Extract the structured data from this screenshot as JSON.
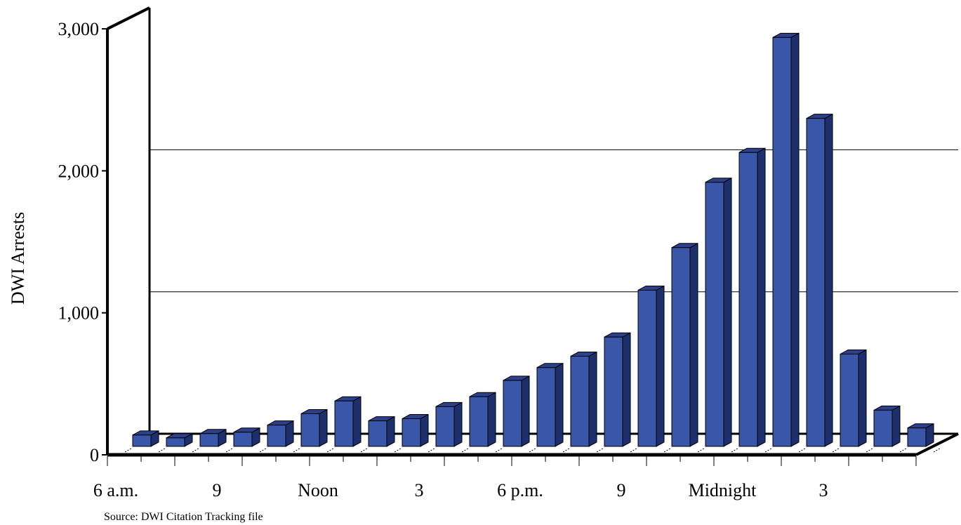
{
  "chart_data": {
    "type": "bar",
    "style": "3d",
    "bar_color": "#3a56a8",
    "bar_side_color": "#1f2f6e",
    "bar_top_color": "#2c418a",
    "ylabel": "DWI Arrests",
    "ylim": [
      0,
      3000
    ],
    "yticks": [
      "0",
      "1,000",
      "2,000",
      "3,000"
    ],
    "ytick_values": [
      0,
      1000,
      2000,
      3000
    ],
    "gridlines": [
      1000,
      2000
    ],
    "x_labels": [
      {
        "index": 0,
        "text": "6 a.m."
      },
      {
        "index": 3,
        "text": "9"
      },
      {
        "index": 6,
        "text": "Noon"
      },
      {
        "index": 9,
        "text": "3"
      },
      {
        "index": 12,
        "text": "6 p.m."
      },
      {
        "index": 15,
        "text": "9"
      },
      {
        "index": 18,
        "text": "Midnight"
      },
      {
        "index": 21,
        "text": "3"
      }
    ],
    "values": [
      80,
      60,
      90,
      100,
      150,
      230,
      320,
      180,
      195,
      280,
      350,
      465,
      555,
      635,
      770,
      1100,
      1400,
      1860,
      2070,
      2880,
      2310,
      650,
      255,
      130
    ],
    "source": "Source: DWI Citation Tracking file"
  }
}
